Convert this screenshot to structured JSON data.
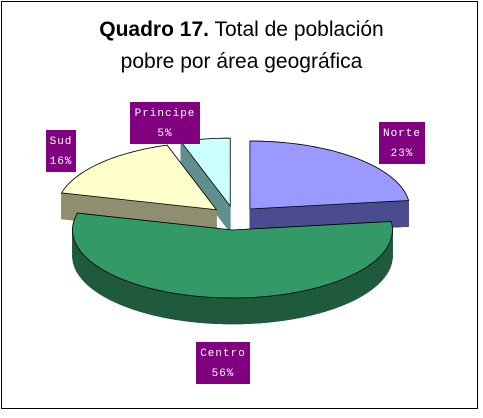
{
  "chart_data": {
    "type": "pie3d",
    "title_label": "Quadro 17.",
    "title": "Total de población pobre por área geográfica",
    "categories": [
      "Norte",
      "Centro",
      "Sud",
      "Principe"
    ],
    "values": [
      23,
      56,
      16,
      5
    ],
    "value_labels": [
      "23%",
      "56%",
      "16%",
      "5%"
    ],
    "colors": [
      "#9999ff",
      "#339966",
      "#ffffcc",
      "#ccffff"
    ],
    "side_colors": [
      "#4b4b8f",
      "#1f5a3c",
      "#8f8f70",
      "#5f8f8f"
    ],
    "label_color": "#800080"
  }
}
